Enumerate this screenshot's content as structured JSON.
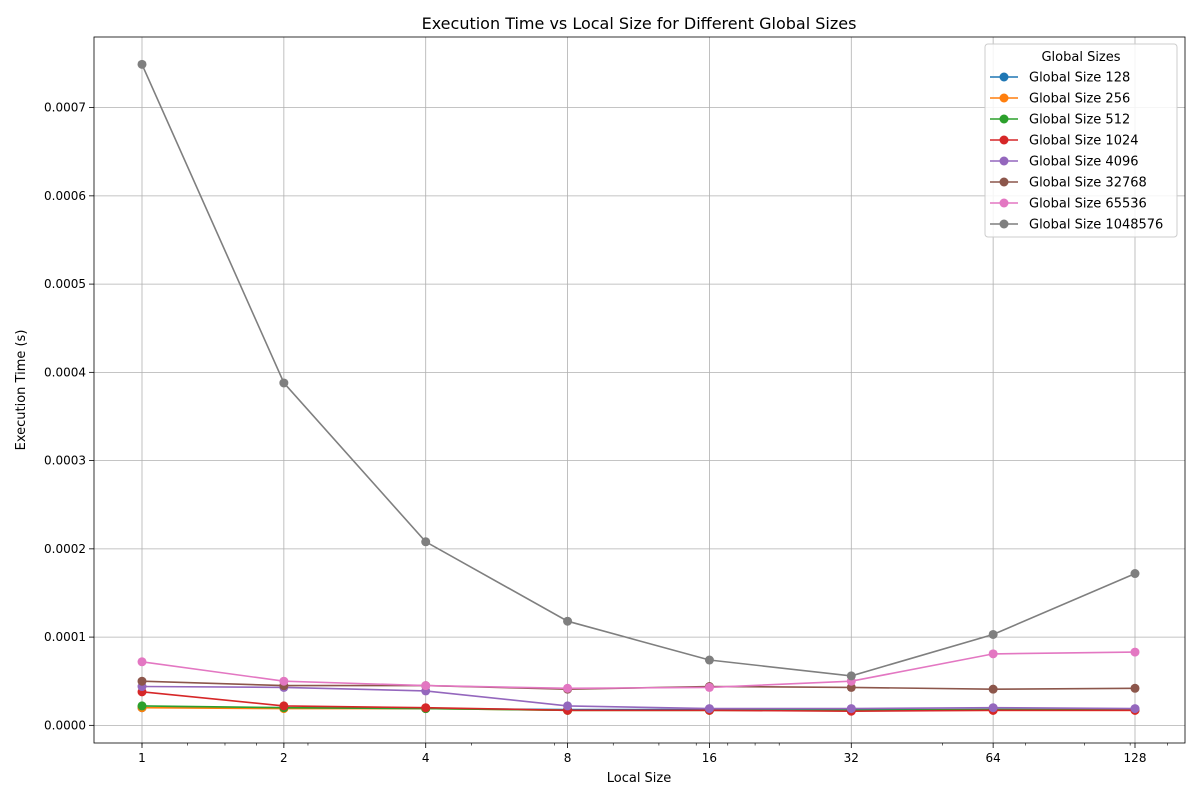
{
  "chart_data": {
    "type": "line",
    "title": "Execution Time vs Local Size for Different Global Sizes",
    "xlabel": "Local Size",
    "ylabel": "Execution Time (s)",
    "x_scale": "log2",
    "x": [
      1,
      2,
      4,
      8,
      16,
      32,
      64,
      128
    ],
    "x_tick_labels": [
      "1",
      "2",
      "4",
      "8",
      "16",
      "32",
      "64",
      "128"
    ],
    "ylim": [
      -2e-05,
      0.00078
    ],
    "y_ticks": [
      0.0,
      0.0001,
      0.0002,
      0.0003,
      0.0004,
      0.0005,
      0.0006,
      0.0007
    ],
    "y_tick_labels": [
      "0.0000",
      "0.0001",
      "0.0002",
      "0.0003",
      "0.0004",
      "0.0005",
      "0.0006",
      "0.0007"
    ],
    "grid": true,
    "legend_title": "Global Sizes",
    "legend_position": "top-right",
    "series": [
      {
        "name": "Global Size 128",
        "color": "#1f77b4",
        "values": [
          2e-05,
          2e-05,
          1.9e-05,
          1.8e-05,
          1.8e-05,
          1.8e-05,
          1.8e-05,
          1.8e-05
        ]
      },
      {
        "name": "Global Size 256",
        "color": "#ff7f0e",
        "values": [
          2e-05,
          1.9e-05,
          1.9e-05,
          1.7e-05,
          1.7e-05,
          1.7e-05,
          1.7e-05,
          1.7e-05
        ]
      },
      {
        "name": "Global Size 512",
        "color": "#2ca02c",
        "values": [
          2.2e-05,
          2e-05,
          1.9e-05,
          1.7e-05,
          1.7e-05,
          1.7e-05,
          1.8e-05,
          1.8e-05
        ]
      },
      {
        "name": "Global Size 1024",
        "color": "#d62728",
        "values": [
          3.8e-05,
          2.2e-05,
          2e-05,
          1.7e-05,
          1.7e-05,
          1.6e-05,
          1.7e-05,
          1.7e-05
        ]
      },
      {
        "name": "Global Size 4096",
        "color": "#9467bd",
        "values": [
          4.4e-05,
          4.3e-05,
          3.9e-05,
          2.2e-05,
          1.9e-05,
          1.9e-05,
          2e-05,
          1.9e-05
        ]
      },
      {
        "name": "Global Size 32768",
        "color": "#8c564b",
        "values": [
          5e-05,
          4.5e-05,
          4.5e-05,
          4.1e-05,
          4.4e-05,
          4.3e-05,
          4.1e-05,
          4.2e-05
        ]
      },
      {
        "name": "Global Size 65536",
        "color": "#e377c2",
        "values": [
          7.2e-05,
          5e-05,
          4.5e-05,
          4.2e-05,
          4.3e-05,
          5e-05,
          8.1e-05,
          8.3e-05
        ]
      },
      {
        "name": "Global Size 1048576",
        "color": "#7f7f7f",
        "values": [
          0.000749,
          0.000388,
          0.000208,
          0.000118,
          7.4e-05,
          5.6e-05,
          0.000103,
          0.000172
        ]
      }
    ]
  }
}
